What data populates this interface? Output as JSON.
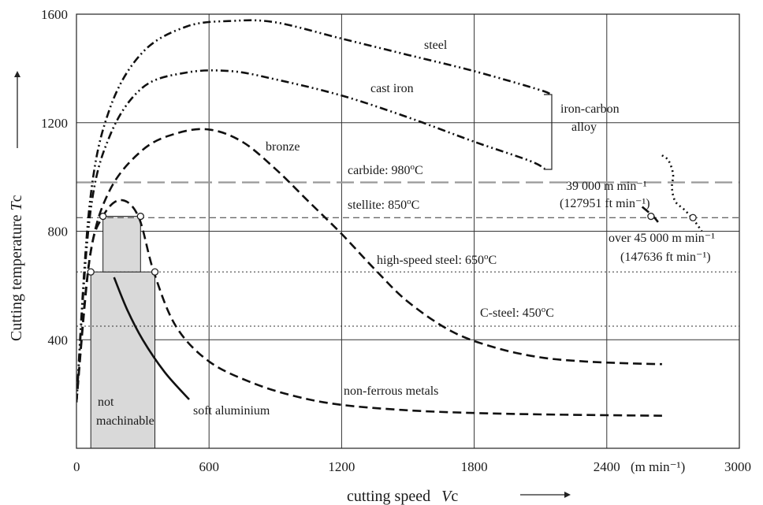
{
  "chart_data": {
    "type": "line",
    "xlabel": "cutting speed  Vc",
    "xlabel_main": "cutting speed",
    "xlabel_var": "V",
    "xlabel_sub": "c",
    "ylabel": "Cutting temperature Tc",
    "ylabel_main": "Cutting temperature ",
    "ylabel_var": "T",
    "ylabel_sub": "c",
    "x_unit": "(m min⁻¹)",
    "xlim": [
      0,
      3000
    ],
    "ylim": [
      0,
      1600
    ],
    "x_ticks": [
      0,
      600,
      1200,
      1800,
      2400,
      3000
    ],
    "y_ticks": [
      400,
      800,
      1200,
      1600
    ],
    "grid": true,
    "series": [
      {
        "name": "steel",
        "style": "dash-dot-dot",
        "x": [
          0,
          60,
          150,
          300,
          500,
          700,
          900,
          1200,
          1500,
          1800,
          2100,
          2150
        ],
        "y": [
          170,
          900,
          1250,
          1460,
          1555,
          1575,
          1570,
          1510,
          1450,
          1390,
          1320,
          1300
        ]
      },
      {
        "name": "cast iron",
        "style": "dash-dot-dot",
        "x": [
          0,
          60,
          150,
          300,
          500,
          700,
          900,
          1200,
          1500,
          1800,
          2050,
          2120
        ],
        "y": [
          170,
          850,
          1150,
          1330,
          1385,
          1390,
          1360,
          1300,
          1220,
          1130,
          1060,
          1030
        ]
      },
      {
        "name": "bronze",
        "style": "dashed",
        "x": [
          0,
          60,
          150,
          300,
          450,
          600,
          750,
          900,
          1050,
          1200,
          1350,
          1500,
          1700,
          1900,
          2100,
          2300,
          2500,
          2650
        ],
        "y": [
          170,
          700,
          950,
          1100,
          1160,
          1175,
          1130,
          1030,
          910,
          790,
          660,
          540,
          430,
          370,
          335,
          320,
          313,
          310
        ]
      },
      {
        "name": "non-ferrous metals",
        "style": "dashed",
        "x": [
          0,
          60,
          120,
          200,
          280,
          350,
          450,
          600,
          800,
          1000,
          1200,
          1500,
          1800,
          2100,
          2400,
          2650
        ],
        "y": [
          170,
          700,
          855,
          915,
          855,
          650,
          450,
          320,
          240,
          190,
          160,
          140,
          130,
          125,
          122,
          120
        ]
      },
      {
        "name": "soft aluminium",
        "style": "solid",
        "x": [
          170,
          230,
          300,
          400,
          510
        ],
        "y": [
          630,
          510,
          400,
          280,
          180
        ]
      },
      {
        "name": "39 000 m min⁻¹ (127951 ft min⁻¹)",
        "style": "dashed",
        "x": [
          2560,
          2610,
          2640
        ],
        "y": [
          890,
          855,
          825
        ]
      },
      {
        "name": "over 45 000 m min⁻¹ (147636 ft min⁻¹)",
        "style": "dotted",
        "x": [
          2650,
          2680,
          2700,
          2695,
          2710,
          2750,
          2790,
          2830
        ],
        "y": [
          1080,
          1060,
          1010,
          960,
          910,
          880,
          845,
          800
        ]
      }
    ],
    "reference_lines": [
      {
        "label": "carbide: 980°C",
        "label_prefix": "carbide: 980",
        "y": 980,
        "style": "long-dash"
      },
      {
        "label": "stellite: 850°C",
        "label_prefix": "stellite: 850",
        "y": 850,
        "style": "short-dash"
      },
      {
        "label": "high-speed steel: 650°C",
        "label_prefix": "high-speed steel: 650",
        "y": 650,
        "style": "dotted"
      },
      {
        "label": "C-steel: 450°C",
        "label_prefix": "C-steel: 450",
        "y": 450,
        "style": "dotted"
      }
    ],
    "degree_unit": "C",
    "open_markers": [
      {
        "x": 65,
        "y": 650
      },
      {
        "x": 120,
        "y": 855
      },
      {
        "x": 290,
        "y": 855
      },
      {
        "x": 355,
        "y": 650
      },
      {
        "x": 2600,
        "y": 855
      },
      {
        "x": 2790,
        "y": 850
      }
    ],
    "shaded_regions": [
      {
        "x": [
          65,
          355
        ],
        "y": [
          0,
          650
        ]
      },
      {
        "x": [
          120,
          290
        ],
        "y": [
          650,
          855
        ]
      }
    ],
    "annotations": {
      "steel": "steel",
      "cast_iron": "cast iron",
      "bronze": "bronze",
      "iron_carbon_1": "iron-carbon",
      "iron_carbon_2": "alloy",
      "non_ferrous": "non-ferrous metals",
      "soft_aluminium": "soft aluminium",
      "not_1": "not",
      "not_2": "machinable",
      "speed39_1": "39 000 m min⁻¹",
      "speed39_2": "(127951 ft min⁻¹)",
      "speed45_1": "over 45 000 m min⁻¹",
      "speed45_2": "(147636 ft min⁻¹)"
    },
    "colors": {
      "line": "#111111",
      "shade": "#d9d9d9",
      "reference": "#444444"
    }
  }
}
